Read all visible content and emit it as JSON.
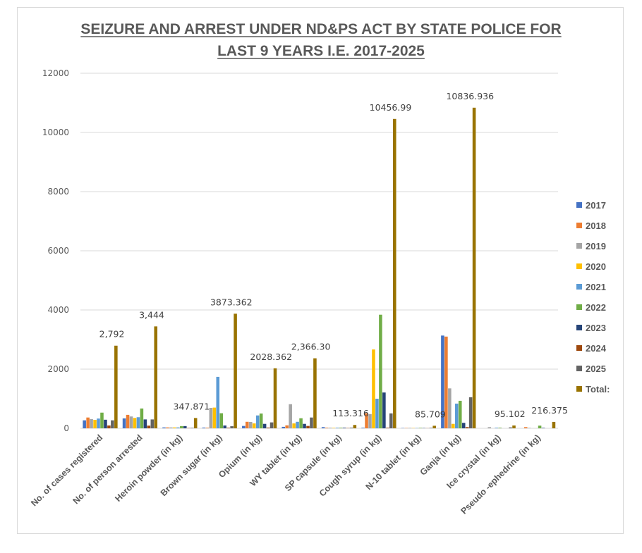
{
  "chart_data": {
    "type": "bar",
    "title": "SEIZURE AND ARREST UNDER ND&PS ACT BY STATE POLICE FOR LAST 9 YEARS I.E. 2017-2025",
    "title_lines": [
      "SEIZURE AND ARREST UNDER ND&PS ACT BY STATE POLICE FOR",
      "LAST 9 YEARS I.E. 2017-2025"
    ],
    "xlabel": "",
    "ylabel": "",
    "ylim": [
      0,
      12000
    ],
    "yticks": [
      0,
      2000,
      4000,
      6000,
      8000,
      10000,
      12000
    ],
    "grid": true,
    "legend_position": "right",
    "categories": [
      "No. of cases registered",
      "No. of person arrested",
      "Heroin powder (in kg)",
      "Brown sugar (in kg)",
      "Opium (in kg)",
      "WY tablet (in kg)",
      "SP capsule (in kg)",
      "Cough syrup (in kg)",
      "N-10 tablet (in kg)",
      "Ganja (in kg)",
      "Ice crystal (in kg)",
      "Pseudo -ephedrine (in kg)"
    ],
    "series": [
      {
        "name": "2017",
        "color": "#4472C4",
        "values": [
          270,
          335,
          30,
          25,
          80,
          50,
          40,
          20,
          10,
          3135,
          0,
          0
        ]
      },
      {
        "name": "2018",
        "color": "#ED7D31",
        "values": [
          365,
          455,
          30,
          20,
          220,
          100,
          20,
          510,
          10,
          3100,
          0,
          40
        ]
      },
      {
        "name": "2019",
        "color": "#A5A5A5",
        "values": [
          310,
          400,
          30,
          690,
          215,
          815,
          20,
          480,
          15,
          1350,
          40,
          15
        ]
      },
      {
        "name": "2020",
        "color": "#FFC000",
        "values": [
          285,
          350,
          30,
          700,
          165,
          165,
          15,
          2665,
          10,
          150,
          0,
          0
        ]
      },
      {
        "name": "2021",
        "color": "#5B9BD5",
        "values": [
          330,
          375,
          30,
          1740,
          435,
          220,
          20,
          1000,
          10,
          835,
          20,
          0
        ]
      },
      {
        "name": "2022",
        "color": "#70AD47",
        "values": [
          530,
          670,
          75,
          510,
          500,
          340,
          20,
          3840,
          15,
          930,
          20,
          90
        ]
      },
      {
        "name": "2023",
        "color": "#264478",
        "values": [
          290,
          300,
          75,
          95,
          150,
          150,
          20,
          1210,
          10,
          185,
          0,
          15
        ]
      },
      {
        "name": "2024",
        "color": "#9E480E",
        "values": [
          95,
          90,
          10,
          20,
          25,
          80,
          10,
          20,
          5,
          40,
          0,
          0
        ]
      },
      {
        "name": "2025",
        "color": "#636363",
        "values": [
          270,
          300,
          15,
          70,
          200,
          365,
          20,
          505,
          15,
          1050,
          30,
          0
        ]
      },
      {
        "name": "Total:",
        "color": "#997300",
        "values": [
          2792,
          3444,
          347.871,
          3873.362,
          2028.362,
          2366.3,
          113.316,
          10456.99,
          85.709,
          10836.936,
          95.102,
          216.375
        ]
      }
    ],
    "data_labels": {
      "series": "Total:",
      "labels": [
        "2,792",
        "3,444",
        "347.871",
        "3873.362",
        "2028.362",
        "2,366.30",
        "113.316",
        "10456.99",
        "85.709",
        "10836.936",
        "95.102",
        "216.375"
      ]
    }
  }
}
